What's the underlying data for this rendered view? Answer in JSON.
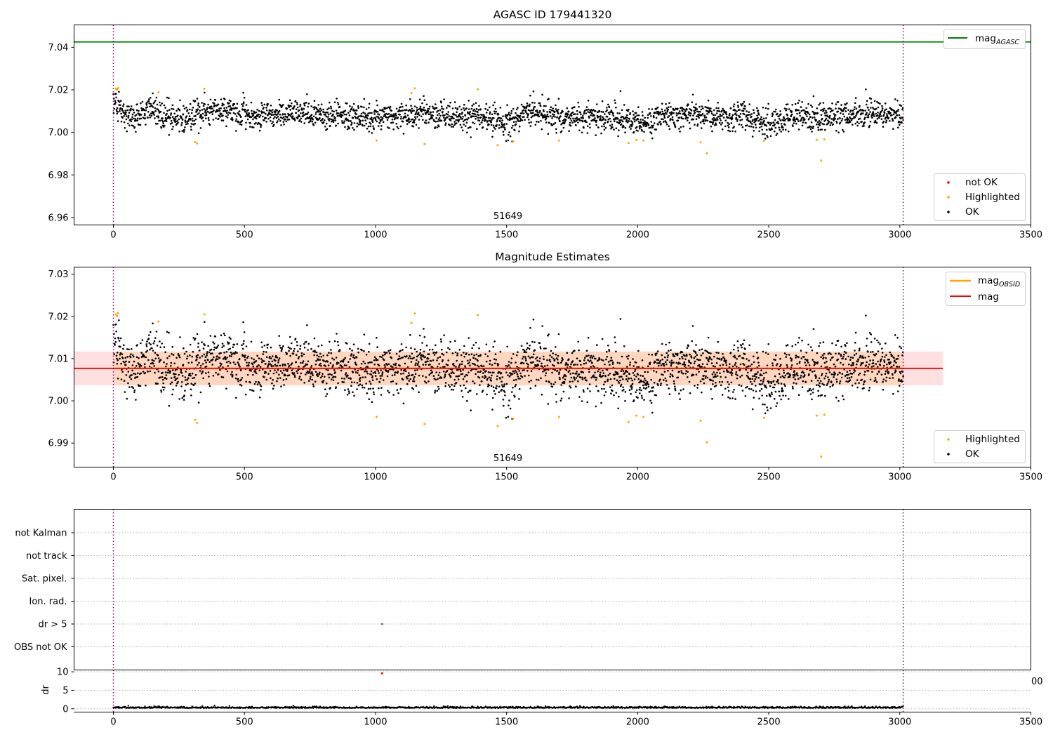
{
  "chart_data": [
    {
      "id": "agasc",
      "type": "scatter",
      "title": "AGASC ID 179441320",
      "xlim": [
        -150,
        3500
      ],
      "ylim": [
        6.9565,
        7.0505
      ],
      "xticks": [
        0,
        500,
        1000,
        1500,
        2000,
        2500,
        3000,
        3500
      ],
      "yticks": [
        6.96,
        6.98,
        7.0,
        7.02,
        7.04
      ],
      "annotation": "51649",
      "annotation_x": 1505,
      "obs_boundaries": [
        0,
        3013
      ],
      "mag_agasc": 7.0425,
      "mag_agasc_line_x": [
        -150,
        3500
      ],
      "ok_trend": [
        [
          0,
          7.0145
        ],
        [
          25,
          7.0105
        ],
        [
          60,
          7.0075
        ],
        [
          100,
          7.0085
        ],
        [
          150,
          7.0115
        ],
        [
          200,
          7.0075
        ],
        [
          260,
          7.0065
        ],
        [
          320,
          7.0085
        ],
        [
          380,
          7.0105
        ],
        [
          450,
          7.0095
        ],
        [
          520,
          7.0075
        ],
        [
          600,
          7.0085
        ],
        [
          700,
          7.0095
        ],
        [
          800,
          7.0075
        ],
        [
          900,
          7.0075
        ],
        [
          1000,
          7.0065
        ],
        [
          1100,
          7.0085
        ],
        [
          1200,
          7.0095
        ],
        [
          1300,
          7.0065
        ],
        [
          1400,
          7.0085
        ],
        [
          1500,
          7.0045
        ],
        [
          1600,
          7.0115
        ],
        [
          1700,
          7.0065
        ],
        [
          1800,
          7.0065
        ],
        [
          1900,
          7.0075
        ],
        [
          2000,
          7.0035
        ],
        [
          2100,
          7.0075
        ],
        [
          2200,
          7.0085
        ],
        [
          2300,
          7.0065
        ],
        [
          2400,
          7.0085
        ],
        [
          2500,
          7.0045
        ],
        [
          2600,
          7.0085
        ],
        [
          2700,
          7.0065
        ],
        [
          2800,
          7.0085
        ],
        [
          2900,
          7.0095
        ],
        [
          3013,
          7.0065
        ]
      ],
      "ok_points_count": 2750,
      "highlighted_points": [
        [
          10,
          7.0205
        ],
        [
          14,
          7.0201
        ],
        [
          18,
          7.0208
        ],
        [
          172,
          7.0188
        ],
        [
          312,
          6.9955
        ],
        [
          320,
          6.9948
        ],
        [
          347,
          7.0205
        ],
        [
          1004,
          6.9962
        ],
        [
          1137,
          7.0185
        ],
        [
          1150,
          7.0207
        ],
        [
          1187,
          6.9945
        ],
        [
          1390,
          7.0203
        ],
        [
          1466,
          6.994
        ],
        [
          1525,
          6.9958
        ],
        [
          1700,
          6.9962
        ],
        [
          1965,
          6.995
        ],
        [
          1995,
          6.9965
        ],
        [
          2022,
          6.9962
        ],
        [
          2240,
          6.9953
        ],
        [
          2264,
          6.9902
        ],
        [
          2482,
          6.996
        ],
        [
          2683,
          6.9965
        ],
        [
          2700,
          6.9868
        ],
        [
          2712,
          6.9967
        ]
      ],
      "not_ok_points": [],
      "legend_top": [
        {
          "label_main": "mag",
          "label_sub": "AGASC",
          "color": "#008000"
        }
      ],
      "legend_bottom": [
        {
          "label": "not OK",
          "color": "#ff0000"
        },
        {
          "label": "Highlighted",
          "color": "#ffa500"
        },
        {
          "label": "OK",
          "color": "#000000"
        }
      ]
    },
    {
      "id": "estimates",
      "type": "scatter",
      "title": "Magnitude Estimates",
      "xlim": [
        -150,
        3500
      ],
      "ylim": [
        6.9843,
        7.0317
      ],
      "xticks": [
        0,
        500,
        1000,
        1500,
        2000,
        2500,
        3000,
        3500
      ],
      "yticks": [
        6.99,
        7.0,
        7.01,
        7.02,
        7.03
      ],
      "annotation": "51649",
      "annotation_x": 1505,
      "obs_boundaries": [
        0,
        3013
      ],
      "mag": 7.0077,
      "mag_band": [
        7.0037,
        7.0117
      ],
      "band_x": [
        -150,
        3165
      ],
      "mag_obsid": 7.0077,
      "mag_obsid_x": [
        0,
        3013
      ],
      "legend_top": [
        {
          "label_main": "mag",
          "label_sub": "OBSID",
          "color": "#ffa500"
        },
        {
          "label_main": "mag",
          "label_sub": "",
          "color": "#ff0000"
        }
      ],
      "legend_bottom": [
        {
          "label": "Highlighted",
          "color": "#ffa500"
        },
        {
          "label": "OK",
          "color": "#000000"
        }
      ]
    },
    {
      "id": "flags",
      "type": "scatter",
      "xlim": [
        -150,
        3500
      ],
      "categories": [
        "not Kalman",
        "not track",
        "Sat. pixel.",
        "Ion. rad.",
        "dr > 5",
        "OBS not OK"
      ],
      "obs_boundaries": [
        0,
        3013
      ],
      "flag_points": [
        {
          "category": "dr > 5",
          "x": 1025
        }
      ]
    },
    {
      "id": "dr",
      "type": "scatter",
      "ylabel": "dr",
      "xlim": [
        -150,
        3500
      ],
      "ylim": [
        -0.9,
        10.5
      ],
      "xticks": [
        0,
        500,
        1000,
        1500,
        2000,
        2500,
        3000,
        3500
      ],
      "yticks": [
        0,
        5,
        10
      ],
      "clipped_tick_label": "00",
      "obs_boundaries": [
        0,
        3013
      ],
      "dr_baseline": 0.2,
      "dr_outliers": [
        [
          1025,
          9.6
        ]
      ]
    }
  ]
}
